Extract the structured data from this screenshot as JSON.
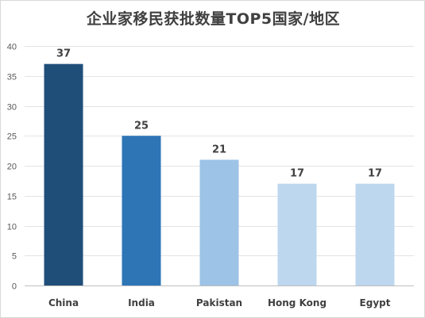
{
  "chart_data": {
    "type": "bar",
    "title": "企业家移民获批数量TOP5国家/地区",
    "xlabel": "",
    "ylabel": "",
    "categories": [
      "China",
      "India",
      "Pakistan",
      "Hong Kong",
      "Egypt"
    ],
    "values": [
      37,
      25,
      21,
      17,
      17
    ],
    "ylim": [
      0,
      40
    ],
    "yticks": [
      0,
      5,
      10,
      15,
      20,
      25,
      30,
      35,
      40
    ],
    "grid": true,
    "legend": "none",
    "bar_colors": [
      "#1f4e79",
      "#2e75b6",
      "#9dc3e6",
      "#bdd7ee",
      "#bdd7ee"
    ]
  }
}
